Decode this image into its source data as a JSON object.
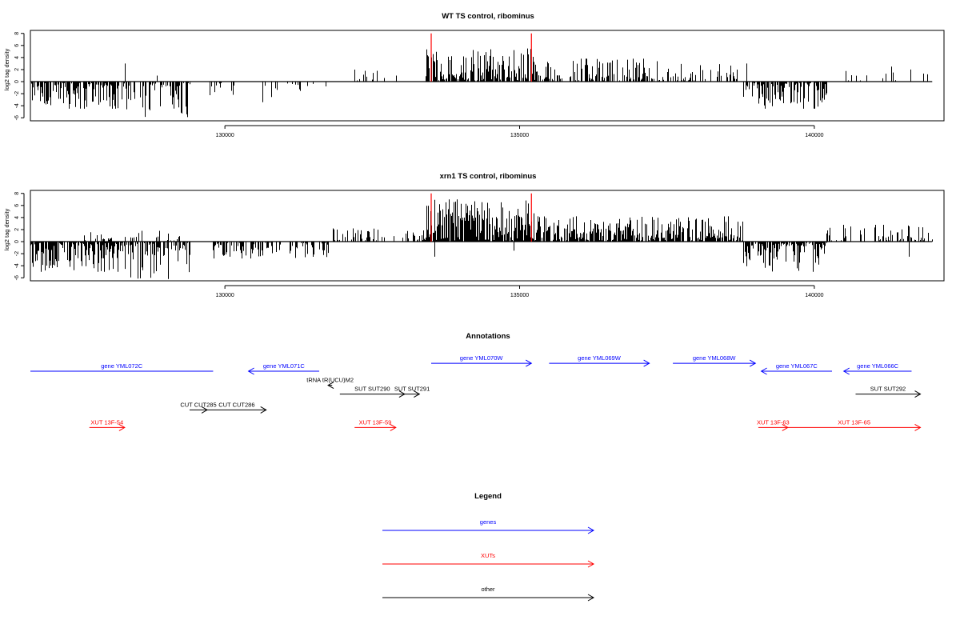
{
  "chart_data": [
    {
      "type": "bar",
      "title": "WT TS control, ribominus",
      "ylabel": "log2 tag density",
      "xlim": [
        126700,
        142200
      ],
      "ylim": [
        -6.5,
        8.5
      ],
      "yticks": [
        -6,
        -4,
        -2,
        0,
        2,
        4,
        6,
        8
      ],
      "xticks": [
        130000,
        135000,
        140000
      ],
      "xtick_labels": [
        "130000",
        "135000",
        "140000"
      ],
      "grid": false,
      "baseline": {
        "start": 126700,
        "end": 142000
      },
      "markers": [
        133500,
        135200
      ],
      "marker_height": 8,
      "marker_color": "#ff0000",
      "bar_color": "#000000",
      "segments": [
        {
          "start": 126700,
          "end": 128300,
          "sign": -1,
          "max": 4.5,
          "density": 0.72,
          "seed": 11
        },
        {
          "start": 128300,
          "end": 129400,
          "sign": -1,
          "max": 6.0,
          "density": 0.55,
          "seed": 12
        },
        {
          "start": 129700,
          "end": 130200,
          "sign": -1,
          "max": 2.5,
          "density": 0.25,
          "seed": 13
        },
        {
          "start": 130600,
          "end": 131800,
          "sign": -1,
          "max": 3.5,
          "density": 0.22,
          "seed": 14
        },
        {
          "start": 132200,
          "end": 133000,
          "sign": 1,
          "max": 1.8,
          "density": 0.1,
          "seed": 15
        },
        {
          "start": 133400,
          "end": 135300,
          "sign": 1,
          "max": 5.5,
          "density": 0.8,
          "seed": 16
        },
        {
          "start": 135300,
          "end": 138000,
          "sign": 1,
          "max": 3.8,
          "density": 0.5,
          "seed": 17
        },
        {
          "start": 138000,
          "end": 138800,
          "sign": 1,
          "max": 3.0,
          "density": 0.35,
          "seed": 18
        },
        {
          "start": 138800,
          "end": 140200,
          "sign": -1,
          "max": 4.5,
          "density": 0.7,
          "seed": 19
        },
        {
          "start": 140500,
          "end": 142000,
          "sign": 1,
          "max": 2.5,
          "density": 0.12,
          "seed": 20
        }
      ],
      "spikes": [
        {
          "x": 128300,
          "v": 3.0
        },
        {
          "x": 128850,
          "v": 1.0
        },
        {
          "x": 132200,
          "v": 2.0
        },
        {
          "x": 132900,
          "v": 1.0
        },
        {
          "x": 138850,
          "v": 3.0
        },
        {
          "x": 141300,
          "v": 2.5
        }
      ]
    },
    {
      "type": "bar",
      "title": "xrn1 TS control, ribominus",
      "ylabel": "log2 tag density",
      "xlim": [
        126700,
        142200
      ],
      "ylim": [
        -6.5,
        8.5
      ],
      "yticks": [
        -6,
        -4,
        -2,
        0,
        2,
        4,
        6,
        8
      ],
      "xticks": [
        130000,
        135000,
        140000
      ],
      "xtick_labels": [
        "130000",
        "135000",
        "140000"
      ],
      "grid": false,
      "baseline": {
        "start": 126700,
        "end": 142000
      },
      "markers": [
        133500,
        135200
      ],
      "marker_height": 8,
      "marker_color": "#ff0000",
      "bar_color": "#000000",
      "segments": [
        {
          "start": 126700,
          "end": 128300,
          "sign": -1,
          "max": 5.0,
          "density": 0.85,
          "seed": 31
        },
        {
          "start": 127600,
          "end": 129300,
          "sign": 1,
          "max": 1.8,
          "density": 0.15,
          "seed": 32
        },
        {
          "start": 128300,
          "end": 129400,
          "sign": -1,
          "max": 6.2,
          "density": 0.7,
          "seed": 33
        },
        {
          "start": 129800,
          "end": 131800,
          "sign": -1,
          "max": 2.8,
          "density": 0.45,
          "seed": 34
        },
        {
          "start": 131800,
          "end": 133400,
          "sign": 1,
          "max": 2.2,
          "density": 0.35,
          "seed": 35
        },
        {
          "start": 133400,
          "end": 135300,
          "sign": 1,
          "max": 7.0,
          "density": 0.95,
          "seed": 36
        },
        {
          "start": 135300,
          "end": 138800,
          "sign": 1,
          "max": 4.2,
          "density": 0.8,
          "seed": 37
        },
        {
          "start": 138800,
          "end": 140200,
          "sign": -1,
          "max": 5.0,
          "density": 0.85,
          "seed": 38
        },
        {
          "start": 140200,
          "end": 142000,
          "sign": 1,
          "max": 2.8,
          "density": 0.4,
          "seed": 39
        }
      ],
      "spikes": [
        {
          "x": 131900,
          "v": 2.0
        },
        {
          "x": 133550,
          "v": -2.5
        },
        {
          "x": 134900,
          "v": -1.5
        },
        {
          "x": 141600,
          "v": -2.5
        }
      ]
    }
  ],
  "annotations": {
    "title": "Annotations",
    "items": [
      {
        "label": "gene YML072C",
        "start": 126700,
        "end": 129800,
        "strand": "-",
        "noarrow": true,
        "color": "#0000ff",
        "row": 0
      },
      {
        "label": "gene YML071C",
        "start": 130400,
        "end": 131600,
        "strand": "-",
        "color": "#0000ff",
        "row": 0
      },
      {
        "label": "gene YML070W",
        "start": 133500,
        "end": 135200,
        "strand": "+",
        "color": "#0000ff",
        "row": -0.45
      },
      {
        "label": "gene YML069W",
        "start": 135500,
        "end": 137200,
        "strand": "+",
        "color": "#0000ff",
        "row": -0.45
      },
      {
        "label": "gene YML068W",
        "start": 137600,
        "end": 139000,
        "strand": "+",
        "color": "#0000ff",
        "row": -0.45
      },
      {
        "label": "gene YML067C",
        "start": 139100,
        "end": 140300,
        "strand": "-",
        "color": "#0000ff",
        "row": 0
      },
      {
        "label": "gene YML066C",
        "start": 140500,
        "end": 141650,
        "strand": "-",
        "color": "#0000ff",
        "row": 0
      },
      {
        "label": "tRNA tR(UCU)M2",
        "start": 131750,
        "end": 131820,
        "strand": "-",
        "color": "#000000",
        "row": 0.8
      },
      {
        "label": "SUT SUT290",
        "start": 131950,
        "end": 133050,
        "strand": "+",
        "color": "#000000",
        "row": 1.3
      },
      {
        "label": "SUT SUT291",
        "start": 133050,
        "end": 133300,
        "strand": "+",
        "color": "#000000",
        "row": 1.3
      },
      {
        "label": "SUT SUT292",
        "start": 140700,
        "end": 141800,
        "strand": "+",
        "color": "#000000",
        "row": 1.3
      },
      {
        "label": "CUT CUT285",
        "start": 129400,
        "end": 129700,
        "strand": "+",
        "color": "#000000",
        "row": 2.2
      },
      {
        "label": "CUT CUT286",
        "start": 129700,
        "end": 130700,
        "strand": "+",
        "color": "#000000",
        "row": 2.2
      },
      {
        "label": "XUT 13F-54",
        "start": 127700,
        "end": 128300,
        "strand": "+",
        "color": "#ff0000",
        "row": 3.2
      },
      {
        "label": "XUT 13F-59",
        "start": 132200,
        "end": 132900,
        "strand": "+",
        "color": "#ff0000",
        "row": 3.2
      },
      {
        "label": "XUT 13F-63",
        "start": 139050,
        "end": 139550,
        "strand": "+",
        "color": "#ff0000",
        "row": 3.2
      },
      {
        "label": "XUT 13F-65",
        "start": 139550,
        "end": 141800,
        "strand": "+",
        "color": "#ff0000",
        "row": 3.2
      }
    ]
  },
  "legend": {
    "title": "Legend",
    "items": [
      {
        "label": "genes",
        "color": "#0000ff"
      },
      {
        "label": "XUTs",
        "color": "#ff0000"
      },
      {
        "label": "other",
        "color": "#000000"
      }
    ]
  }
}
